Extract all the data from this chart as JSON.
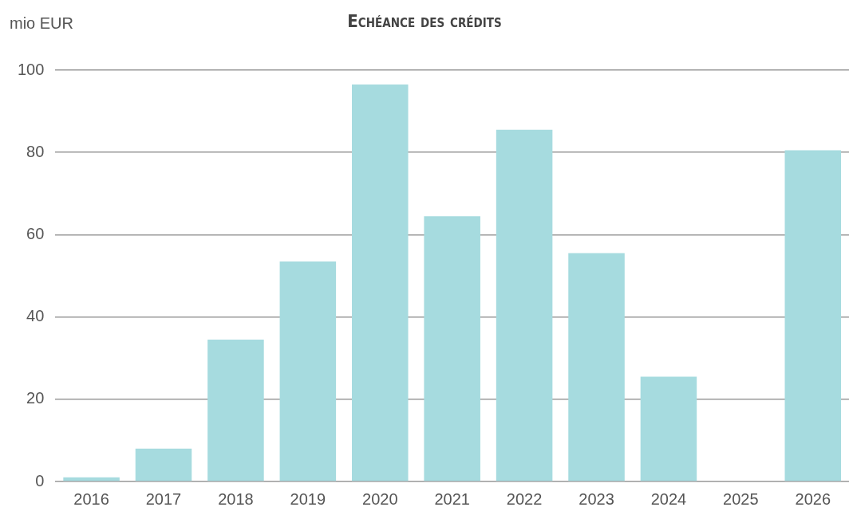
{
  "chart_data": {
    "type": "bar",
    "title": "Echéance des crédits",
    "ylabel": "mio EUR",
    "categories": [
      "2016",
      "2017",
      "2018",
      "2019",
      "2020",
      "2021",
      "2022",
      "2023",
      "2024",
      "2025",
      "2026"
    ],
    "values": [
      1,
      8,
      34.5,
      53.5,
      96.5,
      64.5,
      85.5,
      55.5,
      25.5,
      null,
      80.5
    ],
    "color": "#a6dbdf",
    "ylim": [
      0,
      100
    ],
    "yticks": [
      0,
      20,
      40,
      60,
      80,
      100
    ],
    "grid": "y"
  }
}
